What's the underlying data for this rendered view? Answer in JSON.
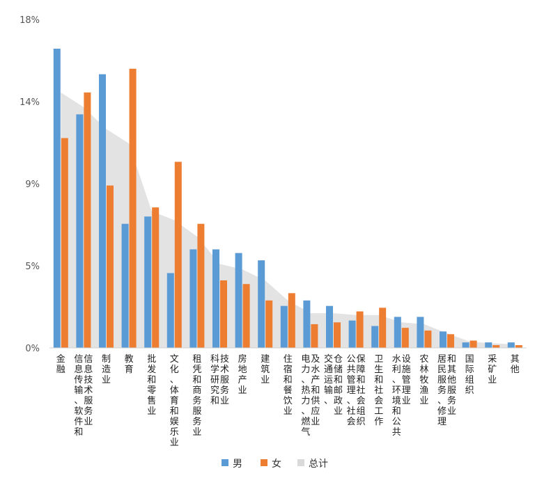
{
  "chart_data": {
    "type": "bar",
    "categories": [
      "金融",
      "信息传输、软件和信息技术服务业",
      "制造业",
      "教育",
      "批发和零售业",
      "文化、体育和娱乐业",
      "租凭和商务服务业",
      "科学研究和技术服务业",
      "房地产业",
      "建筑业",
      "住宿和餐饮业",
      "电力、热力、燃气及水产和供应业",
      "交通运输、仓储和邮政业",
      "公共管理、社会保障和社会组织",
      "卫生和社会工作",
      "水利、环境和公共设施管理业",
      "农林牧渔业",
      "居民服务、修理和其他服务业",
      "国际组织",
      "采矿业",
      "其他"
    ],
    "category_lines": [
      [
        "金融"
      ],
      [
        "信息传输、软件和",
        "信息技术服务业"
      ],
      [
        "制造业"
      ],
      [
        "教育"
      ],
      [
        "批发和零售业"
      ],
      [
        "文化、体育和娱乐业"
      ],
      [
        "租凭和商务服务业"
      ],
      [
        "科学研究和",
        "技术服务业"
      ],
      [
        "房地产业"
      ],
      [
        "建筑业"
      ],
      [
        "住宿和餐饮业"
      ],
      [
        "电力、热力、燃气",
        "及水产和供应业"
      ],
      [
        "交通运输、",
        "仓储和邮政业"
      ],
      [
        "公共管理、社会",
        "保障和社会组织"
      ],
      [
        "卫生和社会工作"
      ],
      [
        "水利、环境和公共",
        "设施管理业"
      ],
      [
        "农林牧渔业"
      ],
      [
        "居民服务、修理",
        "和其他服务业"
      ],
      [
        "国际组织"
      ],
      [
        "采矿业"
      ],
      [
        "其他"
      ]
    ],
    "series": [
      {
        "name": "男",
        "type": "bar",
        "color": "#5B9BD5",
        "values": [
          16.4,
          12.8,
          15.0,
          6.8,
          7.2,
          4.1,
          5.4,
          5.4,
          5.2,
          4.8,
          2.3,
          2.6,
          2.3,
          1.5,
          1.2,
          1.7,
          1.7,
          0.9,
          0.3,
          0.3,
          0.3
        ]
      },
      {
        "name": "女",
        "type": "bar",
        "color": "#ED7D31",
        "values": [
          11.5,
          14.0,
          8.9,
          15.3,
          7.7,
          10.2,
          6.8,
          3.7,
          3.5,
          2.6,
          3.0,
          1.3,
          1.4,
          2.0,
          2.2,
          1.1,
          0.95,
          0.75,
          0.4,
          0.15,
          0.15
        ]
      },
      {
        "name": "总计",
        "type": "area",
        "color": "#D9D9D9",
        "values": [
          14.0,
          13.2,
          12.0,
          11.2,
          7.5,
          7.0,
          6.1,
          4.6,
          4.3,
          3.7,
          2.6,
          1.9,
          1.9,
          1.8,
          1.8,
          1.4,
          1.3,
          0.8,
          0.35,
          0.25,
          0.2
        ]
      }
    ],
    "yticks": [
      "0%",
      "5%",
      "9%",
      "14%",
      "18%"
    ],
    "ytick_values": [
      0,
      4.5,
      9,
      13.5,
      18
    ],
    "ylim": [
      0,
      18
    ],
    "grid": false,
    "legend_position": "bottom-center"
  }
}
